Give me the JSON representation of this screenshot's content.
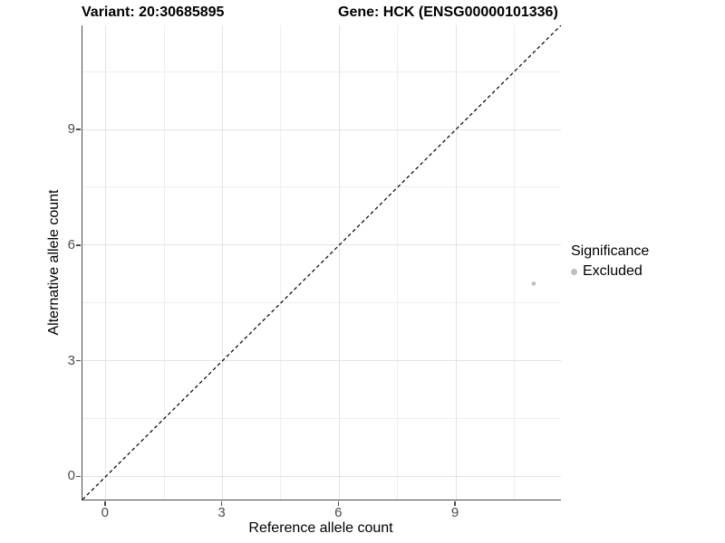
{
  "chart_data": {
    "type": "scatter",
    "titles": {
      "left": "Variant: 20:30685895",
      "right": "Gene: HCK (ENSG00000101336)"
    },
    "xlabel": "Reference allele count",
    "ylabel": "Alternative allele count",
    "xlim": [
      -0.6,
      11.7
    ],
    "ylim": [
      -0.6,
      11.7
    ],
    "major_ticks": [
      0,
      3,
      6,
      9
    ],
    "minor_gridlines": [
      1.5,
      4.5,
      7.5,
      10.5
    ],
    "grid": true,
    "reference_line": {
      "kind": "identity y=x",
      "style": "dashed",
      "color": "#000000"
    },
    "legend": {
      "position": "right",
      "title": "Significance",
      "items": [
        {
          "label": "Excluded",
          "color": "#bebebe"
        }
      ]
    },
    "series": [
      {
        "name": "Excluded",
        "color": "#bebebe",
        "points": [
          {
            "x": 11,
            "y": 5
          }
        ]
      }
    ]
  },
  "colors": {
    "background": "#ffffff",
    "grid_major": "#e3e3e3",
    "grid_minor": "#eeeeee",
    "axis_line": "#4a4a4a",
    "tick_label": "#4d4d4d",
    "title_text": "#000000",
    "point_excluded": "#bebebe"
  }
}
